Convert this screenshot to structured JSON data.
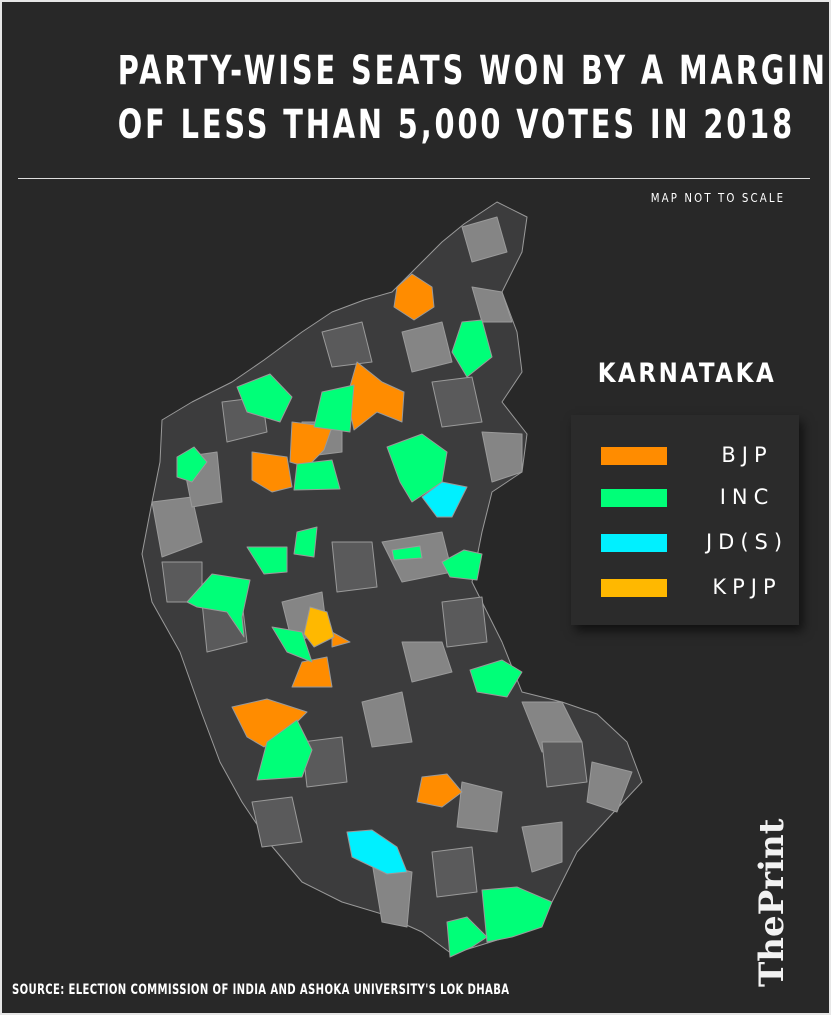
{
  "title": {
    "line1": "PARTY-WISE SEATS WON BY A MARGIN",
    "line2": "OF LESS THAN 5,000 VOTES IN 2018"
  },
  "map_note": "MAP NOT TO SCALE",
  "state_name": "KARNATAKA",
  "legend": [
    {
      "label": "BJP",
      "color": "#ff8c00"
    },
    {
      "label": "INC",
      "color": "#00ff78"
    },
    {
      "label": "JD(S)",
      "color": "#00f0ff"
    },
    {
      "label": "KPJP",
      "color": "#ffb800"
    }
  ],
  "colors": {
    "background": "#282828",
    "constituency_dark": "#3c3c3d",
    "constituency_mid": "#5a5a5b",
    "constituency_light": "#858585",
    "border": "#9a9a9a"
  },
  "source": "SOURCE: ELECTION COMMISSION OF INDIA AND ASHOKA UNIVERSITY'S LOK DHABA",
  "logo": "ThePrint"
}
